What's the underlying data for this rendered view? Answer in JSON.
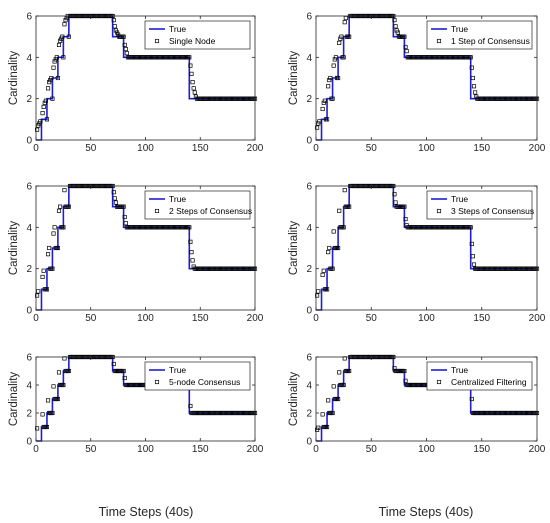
{
  "figure": {
    "xlabel_bottom": "Time Steps (40s)",
    "ylabel": "Cardinality"
  },
  "chart_data": [
    {
      "type": "line",
      "legend": [
        "True",
        "Single Node"
      ],
      "legend_position": "top-right",
      "xlim": [
        0,
        200
      ],
      "ylim": [
        0,
        6
      ],
      "xticks": [
        "0",
        "50",
        "100",
        "150",
        "200"
      ],
      "yticks": [
        "0",
        "2",
        "4",
        "6"
      ],
      "ylabel": "Cardinality",
      "xlabel": "",
      "true_steps": [
        [
          0,
          0
        ],
        [
          5,
          1
        ],
        [
          10,
          2
        ],
        [
          15,
          3
        ],
        [
          20,
          4
        ],
        [
          25,
          5
        ],
        [
          30,
          6
        ],
        [
          70,
          5
        ],
        [
          80,
          4
        ],
        [
          140,
          2
        ],
        [
          200,
          2
        ]
      ],
      "estimate_points": [
        [
          1,
          0.5
        ],
        [
          2,
          0.7
        ],
        [
          3,
          0.8
        ],
        [
          4,
          0.9
        ],
        [
          6,
          1.3
        ],
        [
          7,
          1.6
        ],
        [
          8,
          1.8
        ],
        [
          9,
          1.9
        ],
        [
          11,
          2.5
        ],
        [
          12,
          2.8
        ],
        [
          13,
          2.9
        ],
        [
          14,
          3.0
        ],
        [
          16,
          3.5
        ],
        [
          17,
          3.8
        ],
        [
          18,
          3.9
        ],
        [
          19,
          4.0
        ],
        [
          21,
          4.6
        ],
        [
          22,
          4.8
        ],
        [
          23,
          4.9
        ],
        [
          24,
          5.0
        ],
        [
          26,
          5.6
        ],
        [
          27,
          5.8
        ],
        [
          28,
          5.9
        ],
        [
          29,
          6.0
        ],
        [
          71,
          5.8
        ],
        [
          72,
          5.5
        ],
        [
          73,
          5.3
        ],
        [
          74,
          5.2
        ],
        [
          75,
          5.1
        ],
        [
          81,
          4.6
        ],
        [
          82,
          4.4
        ],
        [
          83,
          4.2
        ],
        [
          141,
          3.6
        ],
        [
          142,
          3.2
        ],
        [
          143,
          2.8
        ],
        [
          144,
          2.5
        ],
        [
          145,
          2.3
        ],
        [
          146,
          2.1
        ]
      ]
    },
    {
      "type": "line",
      "legend": [
        "True",
        "1 Step of Consensus"
      ],
      "legend_position": "top-right",
      "xlim": [
        0,
        200
      ],
      "ylim": [
        0,
        6
      ],
      "xticks": [
        "0",
        "50",
        "100",
        "150",
        "200"
      ],
      "yticks": [
        "0",
        "2",
        "4",
        "6"
      ],
      "ylabel": "Cardinality",
      "xlabel": "",
      "true_steps": [
        [
          0,
          0
        ],
        [
          5,
          1
        ],
        [
          10,
          2
        ],
        [
          15,
          3
        ],
        [
          20,
          4
        ],
        [
          25,
          5
        ],
        [
          30,
          6
        ],
        [
          70,
          5
        ],
        [
          80,
          4
        ],
        [
          140,
          2
        ],
        [
          200,
          2
        ]
      ],
      "estimate_points": [
        [
          1,
          0.6
        ],
        [
          2,
          0.8
        ],
        [
          3,
          0.9
        ],
        [
          6,
          1.5
        ],
        [
          7,
          1.8
        ],
        [
          8,
          1.9
        ],
        [
          11,
          2.6
        ],
        [
          12,
          2.9
        ],
        [
          13,
          3.0
        ],
        [
          16,
          3.6
        ],
        [
          17,
          3.9
        ],
        [
          18,
          4.0
        ],
        [
          21,
          4.7
        ],
        [
          22,
          4.9
        ],
        [
          23,
          5.0
        ],
        [
          26,
          5.7
        ],
        [
          27,
          5.9
        ],
        [
          71,
          5.8
        ],
        [
          72,
          5.5
        ],
        [
          73,
          5.3
        ],
        [
          74,
          5.2
        ],
        [
          81,
          4.5
        ],
        [
          82,
          4.3
        ],
        [
          141,
          3.5
        ],
        [
          142,
          3.0
        ],
        [
          143,
          2.6
        ],
        [
          144,
          2.3
        ],
        [
          145,
          2.1
        ]
      ]
    },
    {
      "type": "line",
      "legend": [
        "True",
        "2 Steps of Consensus"
      ],
      "legend_position": "top-right",
      "xlim": [
        0,
        200
      ],
      "ylim": [
        0,
        6
      ],
      "xticks": [
        "0",
        "50",
        "100",
        "150",
        "200"
      ],
      "yticks": [
        "0",
        "2",
        "4",
        "6"
      ],
      "ylabel": "Cardinality",
      "xlabel": "",
      "true_steps": [
        [
          0,
          0
        ],
        [
          5,
          1
        ],
        [
          10,
          2
        ],
        [
          15,
          3
        ],
        [
          20,
          4
        ],
        [
          25,
          5
        ],
        [
          30,
          6
        ],
        [
          70,
          5
        ],
        [
          80,
          4
        ],
        [
          140,
          2
        ],
        [
          200,
          2
        ]
      ],
      "estimate_points": [
        [
          1,
          0.7
        ],
        [
          2,
          0.9
        ],
        [
          6,
          1.6
        ],
        [
          7,
          1.9
        ],
        [
          11,
          2.7
        ],
        [
          12,
          3.0
        ],
        [
          16,
          3.7
        ],
        [
          17,
          4.0
        ],
        [
          21,
          4.8
        ],
        [
          22,
          5.0
        ],
        [
          26,
          5.8
        ],
        [
          71,
          5.7
        ],
        [
          72,
          5.4
        ],
        [
          73,
          5.2
        ],
        [
          81,
          4.5
        ],
        [
          82,
          4.2
        ],
        [
          141,
          3.3
        ],
        [
          142,
          2.8
        ],
        [
          143,
          2.4
        ],
        [
          144,
          2.1
        ]
      ]
    },
    {
      "type": "line",
      "legend": [
        "True",
        "3 Steps of Consensus"
      ],
      "legend_position": "top-right",
      "xlim": [
        0,
        200
      ],
      "ylim": [
        0,
        6
      ],
      "xticks": [
        "0",
        "50",
        "100",
        "150",
        "200"
      ],
      "yticks": [
        "0",
        "2",
        "4",
        "6"
      ],
      "ylabel": "Cardinality",
      "xlabel": "",
      "true_steps": [
        [
          0,
          0
        ],
        [
          5,
          1
        ],
        [
          10,
          2
        ],
        [
          15,
          3
        ],
        [
          20,
          4
        ],
        [
          25,
          5
        ],
        [
          30,
          6
        ],
        [
          70,
          5
        ],
        [
          80,
          4
        ],
        [
          140,
          2
        ],
        [
          200,
          2
        ]
      ],
      "estimate_points": [
        [
          1,
          0.7
        ],
        [
          2,
          0.9
        ],
        [
          6,
          1.7
        ],
        [
          7,
          1.9
        ],
        [
          11,
          2.8
        ],
        [
          12,
          3.0
        ],
        [
          16,
          3.8
        ],
        [
          21,
          4.8
        ],
        [
          26,
          5.8
        ],
        [
          71,
          5.6
        ],
        [
          72,
          5.2
        ],
        [
          81,
          4.4
        ],
        [
          82,
          4.1
        ],
        [
          141,
          3.2
        ],
        [
          142,
          2.6
        ],
        [
          143,
          2.2
        ]
      ]
    },
    {
      "type": "line",
      "legend": [
        "True",
        "5-node Consensus"
      ],
      "legend_position": "top-right",
      "xlim": [
        0,
        200
      ],
      "ylim": [
        0,
        6
      ],
      "xticks": [
        "0",
        "50",
        "100",
        "150",
        "200"
      ],
      "yticks": [
        "0",
        "2",
        "4",
        "6"
      ],
      "ylabel": "Cardinality",
      "xlabel": "",
      "true_steps": [
        [
          0,
          0
        ],
        [
          5,
          1
        ],
        [
          10,
          2
        ],
        [
          15,
          3
        ],
        [
          20,
          4
        ],
        [
          25,
          5
        ],
        [
          30,
          6
        ],
        [
          70,
          5
        ],
        [
          80,
          4
        ],
        [
          140,
          2
        ],
        [
          200,
          2
        ]
      ],
      "estimate_points": [
        [
          1,
          0.9
        ],
        [
          6,
          1.9
        ],
        [
          11,
          2.9
        ],
        [
          16,
          3.9
        ],
        [
          21,
          4.9
        ],
        [
          26,
          5.9
        ],
        [
          71,
          5.5
        ],
        [
          81,
          4.5
        ],
        [
          141,
          2.5
        ]
      ]
    },
    {
      "type": "line",
      "legend": [
        "True",
        "Centralized Filtering"
      ],
      "legend_position": "top-right",
      "xlim": [
        0,
        200
      ],
      "ylim": [
        0,
        6
      ],
      "xticks": [
        "0",
        "50",
        "100",
        "150",
        "200"
      ],
      "yticks": [
        "0",
        "2",
        "4",
        "6"
      ],
      "ylabel": "Cardinality",
      "xlabel": "",
      "true_steps": [
        [
          0,
          0
        ],
        [
          5,
          1
        ],
        [
          10,
          2
        ],
        [
          15,
          3
        ],
        [
          20,
          4
        ],
        [
          25,
          5
        ],
        [
          30,
          6
        ],
        [
          70,
          5
        ],
        [
          80,
          4
        ],
        [
          140,
          2
        ],
        [
          200,
          2
        ]
      ],
      "estimate_points": [
        [
          1,
          0.8
        ],
        [
          2,
          0.95
        ],
        [
          6,
          1.9
        ],
        [
          11,
          2.9
        ],
        [
          16,
          3.9
        ],
        [
          21,
          4.9
        ],
        [
          26,
          5.9
        ],
        [
          71,
          5.2
        ],
        [
          81,
          4.3
        ],
        [
          141,
          3.0
        ]
      ]
    }
  ],
  "colors": {
    "true_line": "#1f1fd1",
    "marker": "#000000",
    "axis": "#262626",
    "grid": "#d9d9d9"
  }
}
